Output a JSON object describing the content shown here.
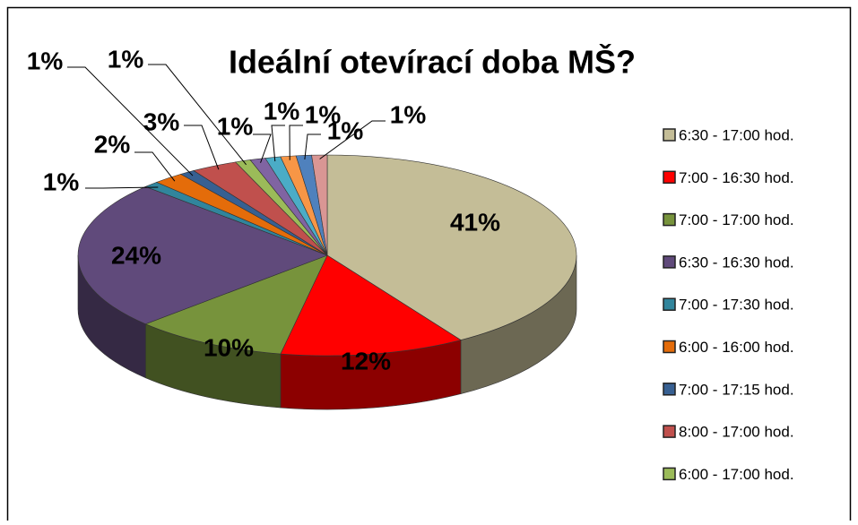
{
  "chart_data": {
    "type": "pie",
    "title": "Ideální otevírací doba MŠ?",
    "categories": [
      "6:30 - 17:00 hod.",
      "7:00 - 16:30 hod.",
      "7:00 - 17:00 hod.",
      "6:30 - 16:30 hod.",
      "7:00 - 17:30 hod.",
      "6:00 - 16:00 hod.",
      "7:00 - 17:15 hod.",
      "8:00 - 17:00 hod.",
      "6:00 - 17:00 hod.",
      null,
      null,
      null,
      null,
      null
    ],
    "values": [
      41,
      12,
      10,
      24,
      1,
      2,
      1,
      3,
      1,
      1,
      1,
      1,
      1,
      1
    ],
    "value_labels": [
      "41%",
      "12%",
      "10%",
      "24%",
      "1%",
      "2%",
      "1%",
      "3%",
      "1%",
      "1%",
      "1%",
      "1%",
      "1%",
      "1%"
    ],
    "colors": [
      "#c4bd97",
      "#ff0000",
      "#77933c",
      "#604a7b",
      "#31859c",
      "#e46c0a",
      "#376092",
      "#c0504d",
      "#9bbb59",
      "#8064a2",
      "#4bacc6",
      "#f79646",
      "#4f81bd",
      "#d99694"
    ]
  }
}
